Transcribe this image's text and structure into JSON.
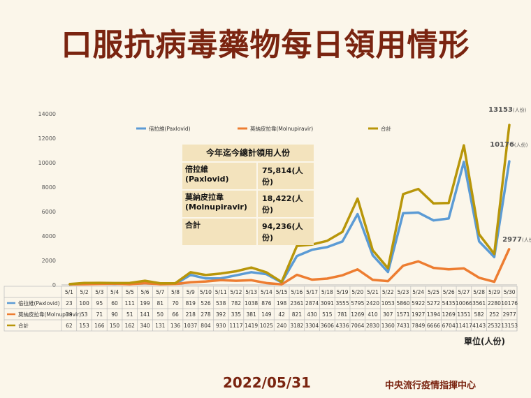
{
  "title": "口服抗病毒藥物每日領用情形",
  "summary": {
    "heading": "今年迄今總計領用人份",
    "rows": [
      {
        "name": "倍拉維 (Paxlovid)",
        "value": "75,814(人份)"
      },
      {
        "name": "莫納皮拉韋 (Molnupiravir)",
        "value": "18,422(人份)"
      },
      {
        "name": "合計",
        "value": "94,236(人份)"
      }
    ]
  },
  "unit": "單位(人份)",
  "date": "2022/05/31",
  "organization": "中央流行疫情指揮中心",
  "colors": {
    "paxlovid": "#5b9bd5",
    "molnupiravir": "#ed7d31",
    "total": "#b8960a"
  },
  "chart_data": {
    "type": "line",
    "title": "",
    "xlabel": "",
    "ylabel": "",
    "ylim": [
      0,
      14000
    ],
    "yticks": [
      0,
      2000,
      4000,
      6000,
      8000,
      10000,
      12000,
      14000
    ],
    "grid": false,
    "legend": "top",
    "categories": [
      "5/1",
      "5/2",
      "5/3",
      "5/4",
      "5/5",
      "5/6",
      "5/7",
      "5/8",
      "5/9",
      "5/10",
      "5/11",
      "5/12",
      "5/13",
      "5/14",
      "5/15",
      "5/16",
      "5/17",
      "5/18",
      "5/19",
      "5/20",
      "5/21",
      "5/22",
      "5/23",
      "5/24",
      "5/25",
      "5/26",
      "5/27",
      "5/28",
      "5/29",
      "5/30"
    ],
    "series": [
      {
        "name": "倍拉維(Paxlovid)",
        "color": "#5b9bd5",
        "values": [
          23,
          100,
          95,
          60,
          111,
          199,
          81,
          70,
          819,
          526,
          538,
          782,
          1038,
          876,
          198,
          2361,
          2874,
          3091,
          3555,
          5795,
          2420,
          1053,
          5860,
          5922,
          5272,
          5435,
          10066,
          3561,
          2280,
          10176
        ]
      },
      {
        "name": "莫納皮拉韋(Molnupiravir)",
        "color": "#ed7d31",
        "values": [
          39,
          53,
          71,
          90,
          51,
          141,
          50,
          66,
          218,
          278,
          392,
          335,
          381,
          149,
          42,
          821,
          430,
          515,
          781,
          1269,
          410,
          307,
          1571,
          1927,
          1394,
          1269,
          1351,
          582,
          252,
          2977
        ]
      },
      {
        "name": "合計",
        "color": "#b8960a",
        "values": [
          62,
          153,
          166,
          150,
          162,
          340,
          131,
          136,
          1037,
          804,
          930,
          1117,
          1419,
          1025,
          240,
          3182,
          3304,
          3606,
          4336,
          7064,
          2830,
          1360,
          7431,
          7849,
          6666,
          6704,
          11417,
          4143,
          2532,
          13153
        ]
      }
    ],
    "annotations": [
      {
        "series": "合計",
        "label": "13153",
        "suffix": "(人份)"
      },
      {
        "series": "倍拉維(Paxlovid)",
        "label": "10176",
        "suffix": "(人份)"
      },
      {
        "series": "莫納皮拉韋(Molnupiravir)",
        "label": "2977",
        "suffix": "(人份)"
      }
    ]
  }
}
